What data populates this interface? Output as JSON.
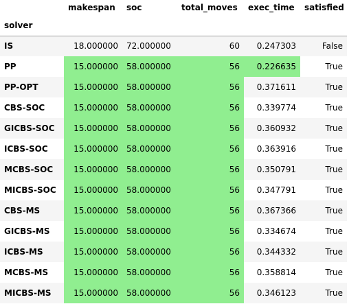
{
  "table": {
    "columns": [
      "makespan",
      "soc",
      "total_moves",
      "exec_time",
      "satisfied"
    ],
    "index_name": "solver",
    "highlight_color": "#90ee90",
    "rows": [
      {
        "solver": "IS",
        "makespan": "18.000000",
        "soc": "72.000000",
        "total_moves": "60",
        "exec_time": "0.247303",
        "satisfied": "False",
        "highlight": []
      },
      {
        "solver": "PP",
        "makespan": "15.000000",
        "soc": "58.000000",
        "total_moves": "56",
        "exec_time": "0.226635",
        "satisfied": "True",
        "highlight": [
          "makespan",
          "soc",
          "total_moves",
          "exec_time"
        ]
      },
      {
        "solver": "PP-OPT",
        "makespan": "15.000000",
        "soc": "58.000000",
        "total_moves": "56",
        "exec_time": "0.371611",
        "satisfied": "True",
        "highlight": [
          "makespan",
          "soc",
          "total_moves"
        ]
      },
      {
        "solver": "CBS-SOC",
        "makespan": "15.000000",
        "soc": "58.000000",
        "total_moves": "56",
        "exec_time": "0.339774",
        "satisfied": "True",
        "highlight": [
          "makespan",
          "soc",
          "total_moves"
        ]
      },
      {
        "solver": "GICBS-SOC",
        "makespan": "15.000000",
        "soc": "58.000000",
        "total_moves": "56",
        "exec_time": "0.360932",
        "satisfied": "True",
        "highlight": [
          "makespan",
          "soc",
          "total_moves"
        ]
      },
      {
        "solver": "ICBS-SOC",
        "makespan": "15.000000",
        "soc": "58.000000",
        "total_moves": "56",
        "exec_time": "0.363916",
        "satisfied": "True",
        "highlight": [
          "makespan",
          "soc",
          "total_moves"
        ]
      },
      {
        "solver": "MCBS-SOC",
        "makespan": "15.000000",
        "soc": "58.000000",
        "total_moves": "56",
        "exec_time": "0.350791",
        "satisfied": "True",
        "highlight": [
          "makespan",
          "soc",
          "total_moves"
        ]
      },
      {
        "solver": "MICBS-SOC",
        "makespan": "15.000000",
        "soc": "58.000000",
        "total_moves": "56",
        "exec_time": "0.347791",
        "satisfied": "True",
        "highlight": [
          "makespan",
          "soc",
          "total_moves"
        ]
      },
      {
        "solver": "CBS-MS",
        "makespan": "15.000000",
        "soc": "58.000000",
        "total_moves": "56",
        "exec_time": "0.367366",
        "satisfied": "True",
        "highlight": [
          "makespan",
          "soc",
          "total_moves"
        ]
      },
      {
        "solver": "GICBS-MS",
        "makespan": "15.000000",
        "soc": "58.000000",
        "total_moves": "56",
        "exec_time": "0.334674",
        "satisfied": "True",
        "highlight": [
          "makespan",
          "soc",
          "total_moves"
        ]
      },
      {
        "solver": "ICBS-MS",
        "makespan": "15.000000",
        "soc": "58.000000",
        "total_moves": "56",
        "exec_time": "0.344332",
        "satisfied": "True",
        "highlight": [
          "makespan",
          "soc",
          "total_moves"
        ]
      },
      {
        "solver": "MCBS-MS",
        "makespan": "15.000000",
        "soc": "58.000000",
        "total_moves": "56",
        "exec_time": "0.358814",
        "satisfied": "True",
        "highlight": [
          "makespan",
          "soc",
          "total_moves"
        ]
      },
      {
        "solver": "MICBS-MS",
        "makespan": "15.000000",
        "soc": "58.000000",
        "total_moves": "56",
        "exec_time": "0.346123",
        "satisfied": "True",
        "highlight": [
          "makespan",
          "soc",
          "total_moves"
        ]
      }
    ]
  }
}
